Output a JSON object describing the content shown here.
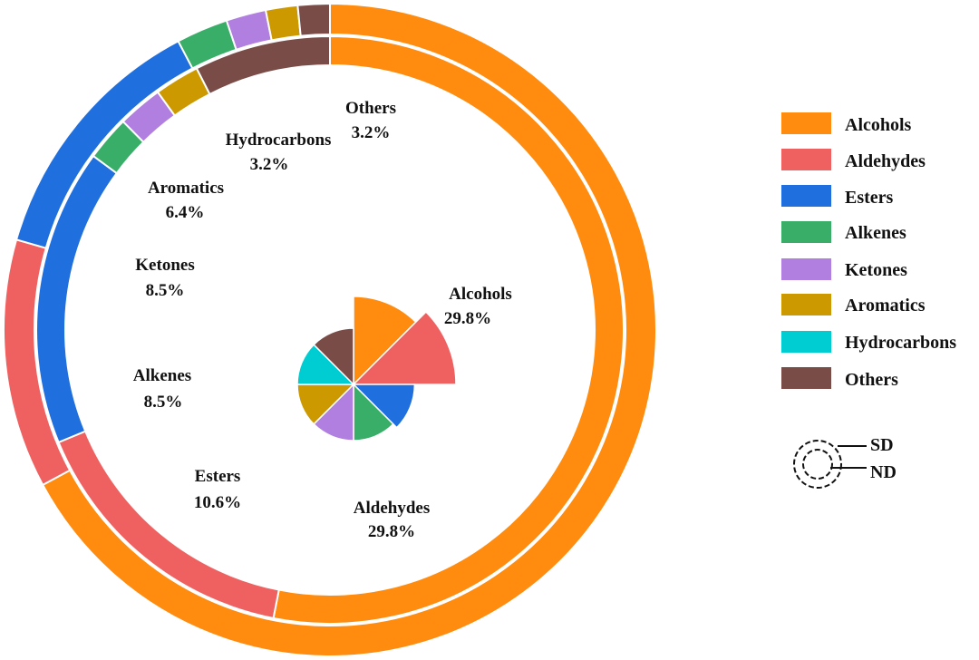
{
  "chart_data": {
    "type": "pie",
    "title": "",
    "categories": [
      "Alcohols",
      "Aldehydes",
      "Esters",
      "Alkenes",
      "Ketones",
      "Aromatics",
      "Hydrocarbons",
      "Others"
    ],
    "colors": [
      "#FF8C0F",
      "#EF6160",
      "#1F6FDE",
      "#38AE68",
      "#B07FE0",
      "#CC9A00",
      "#00CDD2",
      "#7A4C47"
    ],
    "inner_rose": {
      "name": "center",
      "values": [
        29.8,
        29.8,
        10.6,
        8.5,
        8.5,
        6.4,
        3.2,
        3.2
      ],
      "labels": [
        {
          "name": "Alcohols",
          "value": "29.8%"
        },
        {
          "name": "Aldehydes",
          "value": "29.8%"
        },
        {
          "name": "Esters",
          "value": "10.6%"
        },
        {
          "name": "Alkenes",
          "value": "8.5%"
        },
        {
          "name": "Ketones",
          "value": "8.5%"
        },
        {
          "name": "Aromatics",
          "value": "6.4%"
        },
        {
          "name": "Hydrocarbons",
          "value": "3.2%"
        },
        {
          "name": "Others",
          "value": "3.2%"
        }
      ]
    },
    "rings": [
      {
        "name": "ND",
        "position": "inner ring",
        "values": [
          55.9,
          16.5,
          17.2,
          2.6,
          2.6,
          2.6,
          0,
          7.9
        ]
      },
      {
        "name": "SD",
        "position": "outer ring",
        "values": [
          68.0,
          12.5,
          13.0,
          2.6,
          2.0,
          1.6,
          0,
          1.6
        ]
      }
    ]
  },
  "legend": {
    "items": [
      {
        "label": "Alcohols",
        "color": "#FF8C0F"
      },
      {
        "label": "Aldehydes",
        "color": "#EF6160"
      },
      {
        "label": "Esters",
        "color": "#1F6FDE"
      },
      {
        "label": "Alkenes",
        "color": "#38AE68"
      },
      {
        "label": "Ketones",
        "color": "#B07FE0"
      },
      {
        "label": "Aromatics",
        "color": "#CC9A00"
      },
      {
        "label": "Hydrocarbons",
        "color": "#00CDD2"
      },
      {
        "label": "Others",
        "color": "#7A4C47"
      }
    ],
    "ring_key": {
      "outer": "SD",
      "inner": "ND"
    }
  }
}
